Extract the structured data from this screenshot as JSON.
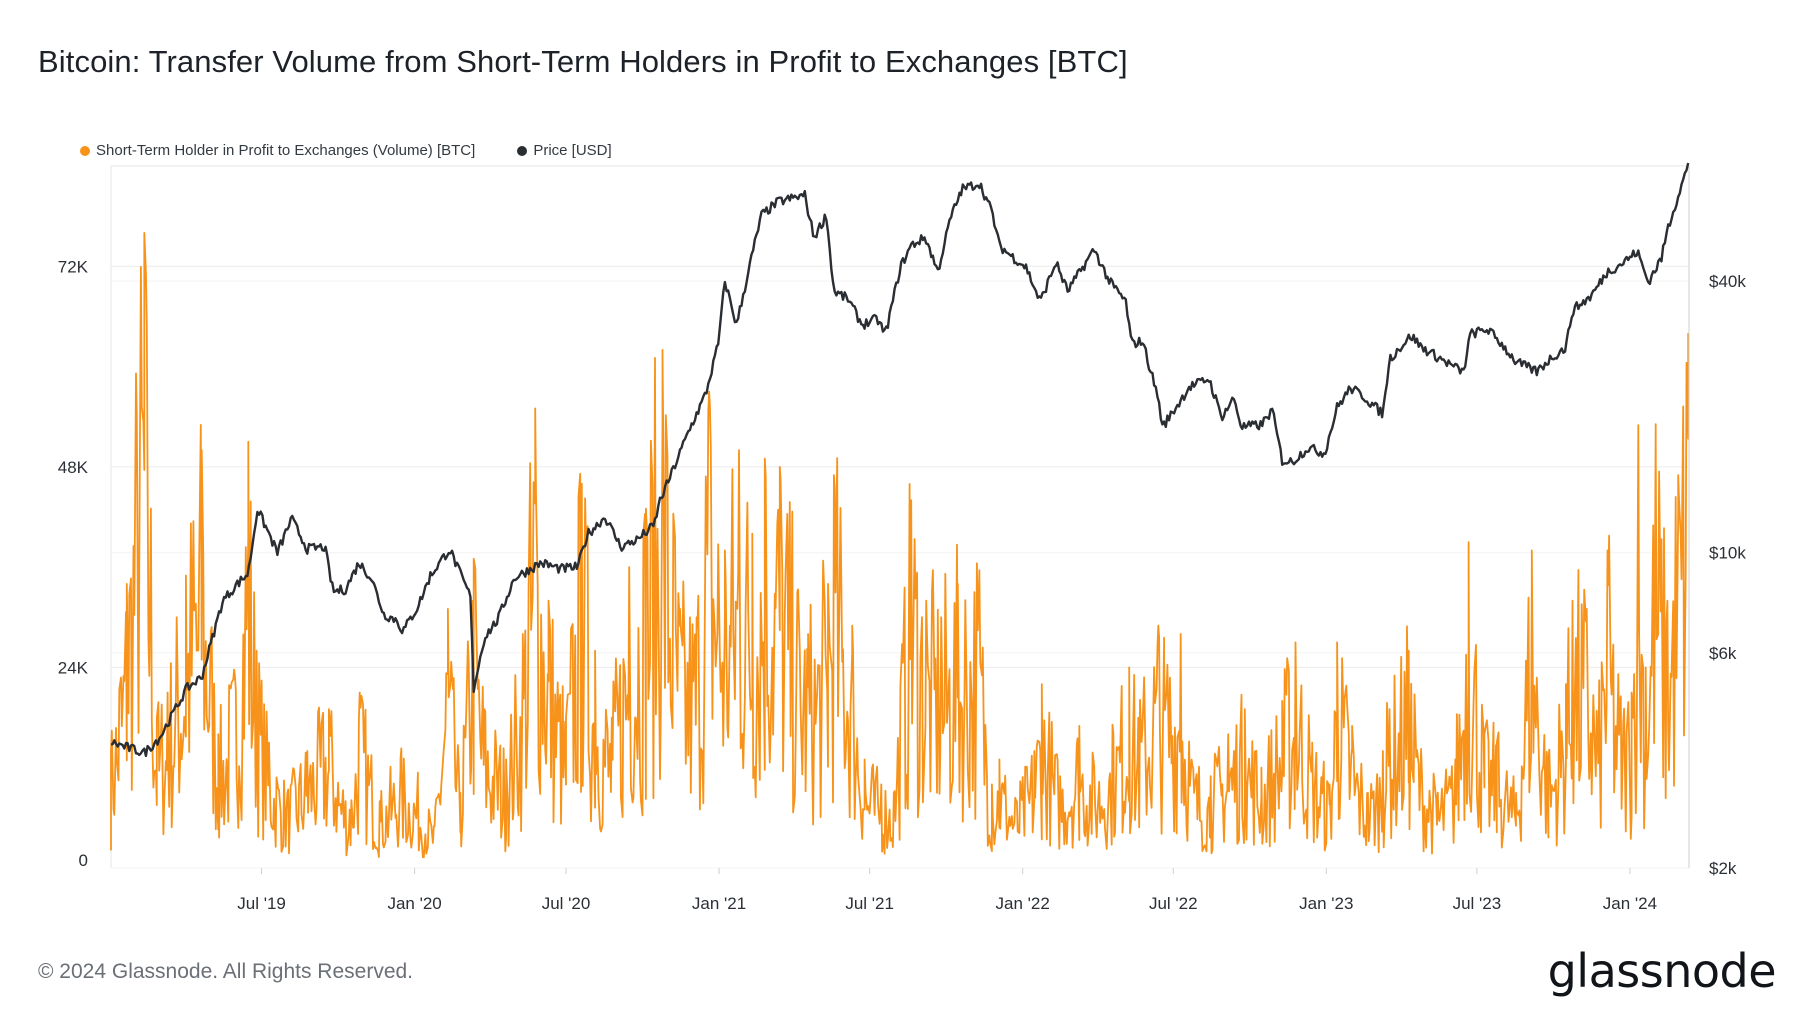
{
  "title": "Bitcoin: Transfer Volume from Short-Term Holders in Profit to Exchanges [BTC]",
  "legend": {
    "volume": "Short-Term Holder in Profit to Exchanges (Volume) [BTC]",
    "price": "Price [USD]"
  },
  "colors": {
    "volume": "#f7931a",
    "price": "#2a2e32",
    "grid": "#ececec"
  },
  "footer": "© 2024 Glassnode. All Rights Reserved.",
  "brand": "glassnode",
  "chart_data": {
    "type": "line",
    "title": "Bitcoin: Transfer Volume from Short-Term Holders in Profit to Exchanges [BTC]",
    "x_ticks": [
      "Jul '19",
      "Jan '20",
      "Jul '20",
      "Jan '21",
      "Jul '21",
      "Jan '22",
      "Jul '22",
      "Jan '23",
      "Jul '23",
      "Jan '24"
    ],
    "x_range": [
      "2019-01-01",
      "2024-03-12"
    ],
    "y_left": {
      "ticks": [
        "0",
        "24K",
        "48K",
        "72K"
      ],
      "tick_values": [
        0,
        24000,
        48000,
        72000
      ],
      "range": [
        0,
        84000
      ]
    },
    "y_right": {
      "scale": "log",
      "ticks": [
        "$2k",
        "$6k",
        "$10k",
        "$40k"
      ],
      "tick_values": [
        2000,
        6000,
        10000,
        40000
      ],
      "range": [
        2000,
        72000
      ]
    },
    "grid": true,
    "legend_position": "top-left",
    "series": [
      {
        "name": "Short-Term Holder in Profit to Exchanges (Volume) [BTC]",
        "axis": "left",
        "color": "#f7931a",
        "x": [
          "2019-01-01",
          "2019-01-20",
          "2019-02-10",
          "2019-02-25",
          "2019-03-10",
          "2019-04-01",
          "2019-04-20",
          "2019-05-10",
          "2019-05-30",
          "2019-06-15",
          "2019-06-25",
          "2019-07-10",
          "2019-08-01",
          "2019-08-25",
          "2019-09-20",
          "2019-10-15",
          "2019-10-27",
          "2019-11-20",
          "2019-12-15",
          "2020-01-05",
          "2020-01-25",
          "2020-02-10",
          "2020-02-25",
          "2020-03-12",
          "2020-03-25",
          "2020-04-20",
          "2020-05-10",
          "2020-05-25",
          "2020-06-10",
          "2020-07-01",
          "2020-07-20",
          "2020-08-05",
          "2020-08-25",
          "2020-09-15",
          "2020-10-05",
          "2020-10-25",
          "2020-11-15",
          "2020-12-05",
          "2020-12-20",
          "2021-01-08",
          "2021-01-25",
          "2021-02-10",
          "2021-02-25",
          "2021-03-15",
          "2021-04-05",
          "2021-04-18",
          "2021-05-12",
          "2021-05-19",
          "2021-06-10",
          "2021-06-25",
          "2021-07-15",
          "2021-07-30",
          "2021-08-20",
          "2021-09-07",
          "2021-09-25",
          "2021-10-15",
          "2021-11-10",
          "2021-11-25",
          "2021-12-04",
          "2021-12-25",
          "2022-01-15",
          "2022-01-24",
          "2022-02-15",
          "2022-03-10",
          "2022-03-28",
          "2022-04-20",
          "2022-05-09",
          "2022-05-20",
          "2022-06-13",
          "2022-06-20",
          "2022-07-10",
          "2022-07-25",
          "2022-08-15",
          "2022-09-05",
          "2022-09-25",
          "2022-10-15",
          "2022-11-09",
          "2022-11-25",
          "2022-12-15",
          "2023-01-05",
          "2023-01-14",
          "2023-02-01",
          "2023-02-20",
          "2023-03-10",
          "2023-03-18",
          "2023-04-10",
          "2023-04-25",
          "2023-05-15",
          "2023-06-05",
          "2023-06-21",
          "2023-07-10",
          "2023-07-25",
          "2023-08-17",
          "2023-09-05",
          "2023-09-25",
          "2023-10-16",
          "2023-10-24",
          "2023-11-10",
          "2023-11-25",
          "2023-12-05",
          "2023-12-20",
          "2024-01-03",
          "2024-01-11",
          "2024-01-20",
          "2024-02-01",
          "2024-02-15",
          "2024-02-28",
          "2024-03-05",
          "2024-03-11"
        ],
        "values": [
          14000,
          34000,
          76000,
          18000,
          21000,
          35000,
          50000,
          16000,
          23000,
          51000,
          26000,
          15000,
          9000,
          14000,
          19000,
          7000,
          21000,
          8000,
          13000,
          10000,
          5000,
          31000,
          9000,
          37000,
          19000,
          13000,
          28000,
          55000,
          32000,
          18000,
          46000,
          26000,
          18000,
          36000,
          43000,
          62000,
          31000,
          30000,
          57000,
          38000,
          50000,
          40000,
          49000,
          48000,
          33000,
          28000,
          34000,
          47000,
          29000,
          13000,
          10000,
          9000,
          44000,
          32000,
          30000,
          34000,
          35000,
          10000,
          13000,
          8000,
          14000,
          22000,
          11000,
          17000,
          12000,
          16000,
          24000,
          18000,
          29000,
          25000,
          28000,
          12000,
          11000,
          16000,
          19000,
          12000,
          20000,
          27000,
          15000,
          10000,
          27000,
          17000,
          9000,
          14000,
          19000,
          26000,
          14000,
          9000,
          13000,
          39000,
          16000,
          15000,
          9000,
          38000,
          13000,
          22000,
          32000,
          31000,
          19000,
          38000,
          20000,
          21000,
          53000,
          24000,
          51000,
          32000,
          47000,
          55000,
          64000
        ]
      },
      {
        "name": "Price [USD]",
        "axis": "right",
        "color": "#2a2e32",
        "x": [
          "2019-01-01",
          "2019-02-10",
          "2019-03-01",
          "2019-04-02",
          "2019-04-20",
          "2019-05-15",
          "2019-06-01",
          "2019-06-15",
          "2019-06-26",
          "2019-07-10",
          "2019-07-20",
          "2019-08-06",
          "2019-08-25",
          "2019-09-15",
          "2019-09-25",
          "2019-10-10",
          "2019-10-26",
          "2019-11-10",
          "2019-11-25",
          "2019-12-10",
          "2019-12-18",
          "2020-01-05",
          "2020-01-20",
          "2020-02-12",
          "2020-02-28",
          "2020-03-08",
          "2020-03-12",
          "2020-03-25",
          "2020-04-10",
          "2020-04-30",
          "2020-05-10",
          "2020-06-01",
          "2020-06-25",
          "2020-07-15",
          "2020-07-27",
          "2020-08-17",
          "2020-09-05",
          "2020-09-25",
          "2020-10-15",
          "2020-10-21",
          "2020-11-05",
          "2020-11-25",
          "2020-12-16",
          "2020-12-31",
          "2021-01-08",
          "2021-01-22",
          "2021-02-10",
          "2021-02-21",
          "2021-03-13",
          "2021-04-14",
          "2021-04-25",
          "2021-05-10",
          "2021-05-19",
          "2021-06-05",
          "2021-06-22",
          "2021-07-10",
          "2021-07-20",
          "2021-08-07",
          "2021-08-20",
          "2021-09-06",
          "2021-09-21",
          "2021-10-06",
          "2021-10-20",
          "2021-11-10",
          "2021-11-25",
          "2021-12-04",
          "2021-12-15",
          "2022-01-05",
          "2022-01-22",
          "2022-02-10",
          "2022-02-24",
          "2022-03-28",
          "2022-04-15",
          "2022-05-05",
          "2022-05-12",
          "2022-05-25",
          "2022-06-13",
          "2022-06-18",
          "2022-07-08",
          "2022-07-20",
          "2022-08-13",
          "2022-08-28",
          "2022-09-12",
          "2022-09-21",
          "2022-10-15",
          "2022-10-28",
          "2022-11-09",
          "2022-11-21",
          "2022-12-10",
          "2022-12-30",
          "2023-01-14",
          "2023-01-30",
          "2023-02-15",
          "2023-03-10",
          "2023-03-18",
          "2023-04-13",
          "2023-04-26",
          "2023-05-20",
          "2023-06-15",
          "2023-06-23",
          "2023-07-14",
          "2023-07-31",
          "2023-08-17",
          "2023-09-11",
          "2023-09-28",
          "2023-10-16",
          "2023-10-24",
          "2023-11-15",
          "2023-12-05",
          "2023-12-20",
          "2024-01-10",
          "2024-01-23",
          "2024-02-08",
          "2024-02-15",
          "2024-02-28",
          "2024-03-05",
          "2024-03-11"
        ],
        "values": [
          3800,
          3600,
          3900,
          5000,
          5300,
          7800,
          8500,
          9000,
          12500,
          11000,
          10000,
          11900,
          10200,
          10300,
          8200,
          8300,
          9500,
          8800,
          7300,
          7100,
          6700,
          7600,
          8900,
          10200,
          8700,
          8000,
          5000,
          6500,
          7100,
          8800,
          9000,
          9500,
          9200,
          9300,
          11000,
          12000,
          10300,
          10700,
          11500,
          12900,
          15000,
          18500,
          22500,
          29000,
          40000,
          32000,
          46000,
          56000,
          60000,
          62000,
          50000,
          56000,
          38000,
          36500,
          32000,
          33000,
          30500,
          43000,
          48000,
          50000,
          42000,
          55000,
          64000,
          66000,
          57000,
          48000,
          46000,
          43000,
          36000,
          44000,
          38000,
          47000,
          40000,
          36000,
          29000,
          29500,
          22000,
          19000,
          21500,
          23300,
          24300,
          20000,
          22000,
          19000,
          19200,
          20700,
          16000,
          15900,
          17100,
          16600,
          21000,
          23200,
          22200,
          20300,
          26900,
          30300,
          28500,
          26800,
          25100,
          30500,
          31300,
          29000,
          26500,
          25200,
          27000,
          28500,
          34500,
          37000,
          42000,
          43500,
          46500,
          39800,
          45000,
          52000,
          62000,
          67000,
          72000
        ]
      }
    ]
  }
}
